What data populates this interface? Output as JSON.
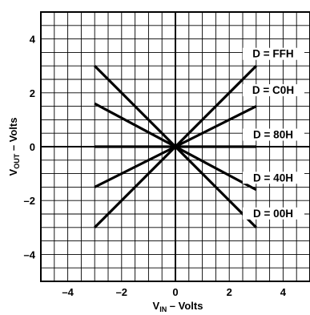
{
  "chart_data": {
    "type": "line",
    "title": "",
    "xlabel": {
      "main": "V",
      "sub": "IN",
      "rest": " – Volts"
    },
    "ylabel": {
      "main": "V",
      "sub": "OUT",
      "rest": " – Volts"
    },
    "xlim": [
      -5,
      5
    ],
    "ylim": [
      -5,
      5
    ],
    "grid": true,
    "x_ticks": [
      -4,
      -2,
      0,
      2,
      4
    ],
    "y_ticks": [
      -4,
      -2,
      0,
      2,
      4
    ],
    "x_tick_labels": [
      "–4",
      "–2",
      "0",
      "2",
      "4"
    ],
    "y_tick_labels": [
      "–4",
      "–2",
      "0",
      "2",
      "4"
    ],
    "series": [
      {
        "name": "D = FFH",
        "x": [
          -3,
          3
        ],
        "y": [
          -3,
          3
        ]
      },
      {
        "name": "D = C0H",
        "x": [
          -3,
          3
        ],
        "y": [
          -1.5,
          1.5
        ]
      },
      {
        "name": "D = 80H",
        "x": [
          -3,
          3
        ],
        "y": [
          0,
          0
        ]
      },
      {
        "name": "D = 40H",
        "x": [
          -3,
          3
        ],
        "y": [
          1.6,
          -1.6
        ]
      },
      {
        "name": "D = 00H",
        "x": [
          -3,
          3
        ],
        "y": [
          3,
          -3
        ]
      }
    ]
  }
}
